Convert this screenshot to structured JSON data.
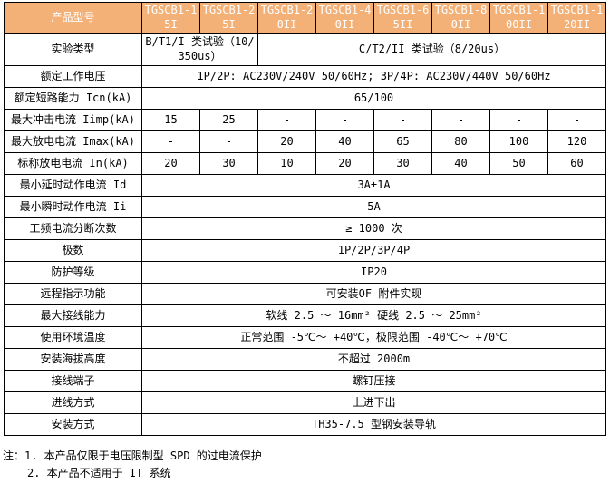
{
  "colors": {
    "header_bg": "#F3B077",
    "header_text": "#FFFFFF",
    "border": "#000000",
    "body_text": "#000000",
    "page_bg": "#FFFFFF"
  },
  "table": {
    "header": {
      "label": "产品型号",
      "models": [
        "TGSCB1-15I",
        "TGSCB1-25I",
        "TGSCB1-20II",
        "TGSCB1-40II",
        "TGSCB1-65II",
        "TGSCB1-80II",
        "TGSCB1-100II",
        "TGSCB1-120II"
      ]
    },
    "rows": [
      {
        "label": "实验类型",
        "cells": [
          "B/T1/I 类试验（10/350us）",
          "C/T2/II 类试验（8/20us）"
        ]
      },
      {
        "label": "额定工作电压",
        "value": "1P/2P: AC230V/240V 50/60Hz; 3P/4P: AC230V/440V 50/60Hz"
      },
      {
        "label": "额定短路能力 Icn(kA)",
        "value": "65/100"
      },
      {
        "label": "最大冲击电流 Iimp(kA)",
        "values": [
          "15",
          "25",
          "-",
          "-",
          "-",
          "-",
          "-",
          "-"
        ]
      },
      {
        "label": "最大放电电流 Imax(kA)",
        "values": [
          "-",
          "-",
          "20",
          "40",
          "65",
          "80",
          "100",
          "120"
        ]
      },
      {
        "label": "标称放电电流 In(kA)",
        "values": [
          "20",
          "30",
          "10",
          "20",
          "30",
          "40",
          "50",
          "60"
        ]
      },
      {
        "label": "最小延时动作电流 Id",
        "value": "3A±1A"
      },
      {
        "label": "最小瞬时动作电流 Ii",
        "value": "5A"
      },
      {
        "label": "工频电流分断次数",
        "value": "≥ 1000 次"
      },
      {
        "label": "极数",
        "value": "1P/2P/3P/4P"
      },
      {
        "label": "防护等级",
        "value": "IP20"
      },
      {
        "label": "远程指示功能",
        "value": "可安装OF 附件实现"
      },
      {
        "label": "最大接线能力",
        "value": "软线 2.5 ～ 16mm² 硬线 2.5 ～ 25mm²"
      },
      {
        "label": "使用环境温度",
        "value": "正常范围 -5℃～ +40℃，极限范围 -40℃～ +70℃"
      },
      {
        "label": "安装海拔高度",
        "value": "不超过 2000m"
      },
      {
        "label": "接线端子",
        "value": "螺钉压接"
      },
      {
        "label": "进线方式",
        "value": "上进下出"
      },
      {
        "label": "安装方式",
        "value": "TH35-7.5 型钢安装导轨"
      }
    ]
  },
  "notes": {
    "line1": "注：1. 本产品仅限于电压限制型 SPD 的过电流保护",
    "line2": "2. 本产品不适用于 IT 系统"
  }
}
